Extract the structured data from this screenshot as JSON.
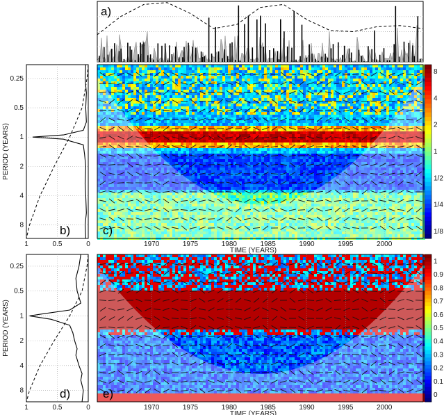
{
  "chart_data": [
    {
      "panel": "a",
      "type": "line",
      "label": "a)",
      "x_range": [
        1963,
        2005
      ],
      "series_style": [
        "gray-filled-area",
        "black-bars",
        "dashed-line"
      ],
      "dashed_curve": {
        "x": [
          1963,
          1966,
          1969,
          1972,
          1975,
          1978,
          1981,
          1984,
          1987,
          1990,
          1993,
          1996,
          1999,
          2002,
          2005
        ],
        "y": [
          0.45,
          0.75,
          0.95,
          0.98,
          0.8,
          0.55,
          0.62,
          0.9,
          0.95,
          0.7,
          0.52,
          0.5,
          0.58,
          0.6,
          0.55
        ]
      }
    },
    {
      "panel": "b",
      "type": "line",
      "label": "b)",
      "ylabel": "PERIOD (YEARS)",
      "yticks": [
        "0.25",
        "0.5",
        "1",
        "2",
        "4",
        "8"
      ],
      "xticks": [
        "1",
        "0.5",
        "0"
      ],
      "xlim": [
        1,
        0
      ],
      "solid_curve": {
        "period": [
          0.18,
          0.25,
          0.35,
          0.5,
          0.7,
          0.85,
          0.95,
          1,
          1.05,
          1.2,
          1.5,
          2,
          3,
          4,
          6,
          8,
          11
        ],
        "value": [
          0.04,
          0.05,
          0.03,
          0.04,
          0.03,
          0.08,
          0.4,
          0.9,
          0.4,
          0.08,
          0.06,
          0.04,
          0.05,
          0.04,
          0.03,
          0.05,
          0.04
        ]
      },
      "dashed_curve": {
        "period": [
          0.18,
          0.25,
          0.5,
          1,
          2,
          4,
          8,
          11
        ],
        "value": [
          0.0,
          0.02,
          0.1,
          0.3,
          0.55,
          0.78,
          0.95,
          1.0
        ]
      }
    },
    {
      "panel": "c",
      "type": "heatmap",
      "label": "c)",
      "xlabel": "TIME (YEARS)",
      "xticks": [
        "1970",
        "1975",
        "1980",
        "1985",
        "1990",
        "1995",
        "2000"
      ],
      "xlim": [
        1963,
        2005
      ],
      "colorbar_ticks": [
        "8",
        "4",
        "2",
        "1",
        "1/2",
        "1/4",
        "1/8"
      ]
    },
    {
      "panel": "d",
      "type": "line",
      "label": "d)",
      "ylabel": "PERIOD (YEARS)",
      "yticks": [
        "0.25",
        "0.5",
        "1",
        "2",
        "4",
        "8"
      ],
      "xticks": [
        "1",
        "0.5",
        "0"
      ],
      "xlim": [
        1,
        0
      ],
      "solid_curve": {
        "period": [
          0.18,
          0.25,
          0.35,
          0.5,
          0.7,
          0.85,
          0.95,
          1,
          1.1,
          1.3,
          1.6,
          2,
          2.5,
          3,
          4,
          5,
          6,
          8,
          11
        ],
        "value": [
          0.12,
          0.15,
          0.2,
          0.18,
          0.12,
          0.3,
          0.75,
          0.95,
          0.6,
          0.3,
          0.25,
          0.22,
          0.18,
          0.2,
          0.15,
          0.1,
          0.12,
          0.08,
          0.1
        ]
      },
      "dashed_curve": {
        "period": [
          0.18,
          0.25,
          0.5,
          1,
          2,
          4,
          8,
          11
        ],
        "value": [
          0.0,
          0.02,
          0.1,
          0.3,
          0.55,
          0.78,
          0.95,
          1.0
        ]
      }
    },
    {
      "panel": "e",
      "type": "heatmap",
      "label": "e)",
      "xlabel": "TIME (YEARS)",
      "xticks": [
        "1970",
        "1975",
        "1980",
        "1985",
        "1990",
        "1995",
        "2000"
      ],
      "xlim": [
        1963,
        2005
      ],
      "colorbar_ticks": [
        "1",
        "0.9",
        "0.8",
        "0.7",
        "0.6",
        "0.5",
        "0.4",
        "0.3",
        "0.2",
        "0.1",
        "0"
      ]
    }
  ]
}
